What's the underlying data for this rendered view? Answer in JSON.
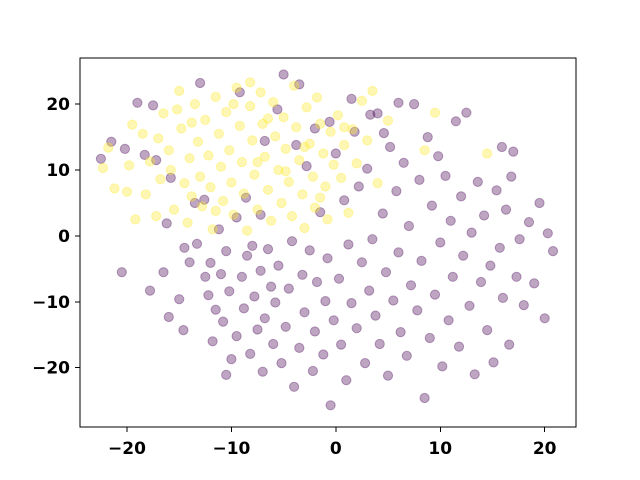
{
  "chart_data": {
    "type": "scatter",
    "title": "",
    "xlabel": "",
    "ylabel": "",
    "xlim": [
      -24.5,
      23.0
    ],
    "ylim": [
      -29.0,
      27.0
    ],
    "x_ticks": [
      -20,
      -10,
      0,
      10,
      20
    ],
    "y_ticks": [
      -20,
      -10,
      0,
      10,
      20
    ],
    "x_tick_labels": [
      "−20",
      "−10",
      "0",
      "10",
      "20"
    ],
    "y_tick_labels": [
      "−20",
      "−10",
      "0",
      "10",
      "20"
    ],
    "grid": false,
    "legend": "none",
    "marker_alpha": 0.35,
    "series": [
      {
        "color": "#440154",
        "points": [
          [
            -22.5,
            11.7
          ],
          [
            -21.5,
            14.3
          ],
          [
            -20.2,
            13.2
          ],
          [
            -20.5,
            -5.5
          ],
          [
            -19.0,
            20.2
          ],
          [
            -18.3,
            12.3
          ],
          [
            -17.5,
            19.8
          ],
          [
            -17.2,
            11.5
          ],
          [
            -17.8,
            -8.3
          ],
          [
            -16.5,
            -5.5
          ],
          [
            -16.2,
            1.9
          ],
          [
            -16.0,
            -12.3
          ],
          [
            -15.0,
            -9.6
          ],
          [
            -14.5,
            -1.8
          ],
          [
            -14.0,
            -4.0
          ],
          [
            -14.6,
            -14.3
          ],
          [
            -13.5,
            5.0
          ],
          [
            -13.0,
            23.2
          ],
          [
            -12.5,
            -6.2
          ],
          [
            -12.0,
            -4.1
          ],
          [
            -12.2,
            -9.0
          ],
          [
            -11.8,
            -16.0
          ],
          [
            -11.5,
            -11.2
          ],
          [
            -11.0,
            -5.8
          ],
          [
            -10.5,
            -2.3
          ],
          [
            -10.8,
            -13.0
          ],
          [
            -10.2,
            -8.4
          ],
          [
            -10.5,
            -21.1
          ],
          [
            -10.0,
            -18.7
          ],
          [
            -9.5,
            -15.2
          ],
          [
            -9.2,
            21.8
          ],
          [
            -9.0,
            -6.2
          ],
          [
            -8.8,
            -11.0
          ],
          [
            -8.5,
            -3.0
          ],
          [
            -8.2,
            -17.9
          ],
          [
            -8.0,
            -1.5
          ],
          [
            -7.8,
            -9.2
          ],
          [
            -7.5,
            -14.2
          ],
          [
            -7.2,
            -5.3
          ],
          [
            -7.0,
            -20.6
          ],
          [
            -6.8,
            -12.5
          ],
          [
            -6.5,
            -2.0
          ],
          [
            -6.2,
            -7.7
          ],
          [
            -6.0,
            -16.4
          ],
          [
            -5.8,
            -10.1
          ],
          [
            -5.5,
            -4.5
          ],
          [
            -5.2,
            -19.3
          ],
          [
            -5.0,
            24.5
          ],
          [
            -4.8,
            -13.8
          ],
          [
            -4.5,
            -8.0
          ],
          [
            -4.2,
            -0.8
          ],
          [
            -4.0,
            -22.9
          ],
          [
            -3.8,
            13.8
          ],
          [
            -3.5,
            -17.0
          ],
          [
            -3.2,
            -5.9
          ],
          [
            -3.0,
            -11.6
          ],
          [
            -2.8,
            10.6
          ],
          [
            -2.5,
            -2.2
          ],
          [
            -2.2,
            -20.5
          ],
          [
            -2.0,
            -14.5
          ],
          [
            -1.8,
            -7.0
          ],
          [
            -1.5,
            3.6
          ],
          [
            -1.2,
            -18.0
          ],
          [
            -1.0,
            -9.9
          ],
          [
            -0.8,
            -3.4
          ],
          [
            -0.5,
            -25.7
          ],
          [
            -0.2,
            -12.8
          ],
          [
            0.0,
            12.5
          ],
          [
            0.3,
            -6.5
          ],
          [
            0.5,
            -16.5
          ],
          [
            0.8,
            5.4
          ],
          [
            1.0,
            -21.9
          ],
          [
            1.2,
            -1.3
          ],
          [
            1.5,
            -10.2
          ],
          [
            1.8,
            15.8
          ],
          [
            2.0,
            -14.0
          ],
          [
            2.2,
            7.5
          ],
          [
            2.5,
            -4.0
          ],
          [
            2.8,
            -19.3
          ],
          [
            3.0,
            10.2
          ],
          [
            3.2,
            -8.3
          ],
          [
            3.5,
            -0.5
          ],
          [
            3.8,
            -12.1
          ],
          [
            4.0,
            18.6
          ],
          [
            4.2,
            -16.4
          ],
          [
            4.5,
            3.4
          ],
          [
            4.8,
            -5.5
          ],
          [
            5.0,
            -21.2
          ],
          [
            5.2,
            13.5
          ],
          [
            5.5,
            -9.8
          ],
          [
            5.8,
            6.8
          ],
          [
            6.0,
            -2.5
          ],
          [
            6.2,
            -14.6
          ],
          [
            6.5,
            11.1
          ],
          [
            6.8,
            -18.2
          ],
          [
            7.0,
            1.5
          ],
          [
            7.2,
            -7.5
          ],
          [
            7.5,
            20.0
          ],
          [
            7.8,
            -11.3
          ],
          [
            8.0,
            8.5
          ],
          [
            8.2,
            -3.8
          ],
          [
            8.5,
            -24.6
          ],
          [
            8.8,
            15.0
          ],
          [
            9.0,
            -15.5
          ],
          [
            9.2,
            4.6
          ],
          [
            9.5,
            -8.9
          ],
          [
            9.8,
            12.1
          ],
          [
            10.0,
            -1.0
          ],
          [
            10.2,
            -19.8
          ],
          [
            10.5,
            9.1
          ],
          [
            10.8,
            -12.8
          ],
          [
            11.0,
            2.3
          ],
          [
            11.2,
            -6.2
          ],
          [
            11.5,
            17.4
          ],
          [
            11.8,
            -16.8
          ],
          [
            12.0,
            6.0
          ],
          [
            12.2,
            -3.0
          ],
          [
            12.5,
            18.7
          ],
          [
            12.8,
            -10.6
          ],
          [
            13.0,
            0.5
          ],
          [
            13.3,
            -21.0
          ],
          [
            13.6,
            8.2
          ],
          [
            13.9,
            -7.0
          ],
          [
            14.2,
            3.1
          ],
          [
            14.5,
            -14.3
          ],
          [
            14.8,
            -4.5
          ],
          [
            15.1,
            -19.2
          ],
          [
            15.4,
            6.9
          ],
          [
            15.7,
            -1.8
          ],
          [
            16.0,
            -9.4
          ],
          [
            16.3,
            4.0
          ],
          [
            16.6,
            -16.5
          ],
          [
            17.0,
            12.8
          ],
          [
            17.3,
            -6.2
          ],
          [
            17.6,
            -0.5
          ],
          [
            18.0,
            -10.5
          ],
          [
            18.5,
            2.1
          ],
          [
            19.0,
            -7.2
          ],
          [
            19.5,
            5.0
          ],
          [
            20.0,
            -12.5
          ],
          [
            20.3,
            0.4
          ],
          [
            20.8,
            -2.3
          ],
          [
            16.8,
            9.0
          ],
          [
            15.9,
            13.5
          ],
          [
            -3.5,
            23.0
          ],
          [
            -5.6,
            19.2
          ],
          [
            -2.0,
            16.3
          ],
          [
            -6.8,
            14.4
          ],
          [
            1.5,
            20.8
          ],
          [
            -0.6,
            17.3
          ],
          [
            6.0,
            20.2
          ],
          [
            -12.6,
            5.5
          ],
          [
            -11.2,
            1.0
          ],
          [
            -9.5,
            2.8
          ],
          [
            -13.3,
            -1.2
          ],
          [
            -15.8,
            8.8
          ],
          [
            -7.2,
            3.2
          ],
          [
            -8.6,
            5.8
          ],
          [
            3.3,
            18.4
          ],
          [
            4.6,
            15.6
          ]
        ]
      },
      {
        "color": "#fde725",
        "points": [
          [
            -22.3,
            10.3
          ],
          [
            -21.2,
            7.2
          ],
          [
            -20.0,
            6.7
          ],
          [
            -19.5,
            16.9
          ],
          [
            -19.2,
            2.5
          ],
          [
            -18.5,
            15.5
          ],
          [
            -18.2,
            6.3
          ],
          [
            -17.8,
            11.3
          ],
          [
            -17.2,
            3.0
          ],
          [
            -16.8,
            8.6
          ],
          [
            -16.5,
            18.6
          ],
          [
            -16.0,
            13.0
          ],
          [
            -15.8,
            10.0
          ],
          [
            -15.2,
            19.2
          ],
          [
            -15.0,
            22.0
          ],
          [
            -14.8,
            16.3
          ],
          [
            -14.5,
            8.0
          ],
          [
            -14.2,
            2.0
          ],
          [
            -14.0,
            11.8
          ],
          [
            -13.8,
            6.0
          ],
          [
            -13.5,
            20.0
          ],
          [
            -13.2,
            14.3
          ],
          [
            -13.0,
            9.0
          ],
          [
            -12.8,
            4.5
          ],
          [
            -12.5,
            17.6
          ],
          [
            -12.2,
            12.2
          ],
          [
            -12.0,
            7.4
          ],
          [
            -11.8,
            1.0
          ],
          [
            -11.5,
            21.1
          ],
          [
            -11.2,
            15.5
          ],
          [
            -11.0,
            10.5
          ],
          [
            -10.8,
            5.3
          ],
          [
            -10.5,
            18.8
          ],
          [
            -10.2,
            13.0
          ],
          [
            -10.0,
            8.1
          ],
          [
            -9.8,
            3.2
          ],
          [
            -9.5,
            22.5
          ],
          [
            -9.2,
            16.7
          ],
          [
            -9.0,
            11.2
          ],
          [
            -8.8,
            6.4
          ],
          [
            -8.5,
            0.8
          ],
          [
            -8.2,
            19.7
          ],
          [
            -8.0,
            14.5
          ],
          [
            -7.8,
            9.3
          ],
          [
            -7.5,
            4.0
          ],
          [
            -7.2,
            21.8
          ],
          [
            -7.0,
            17.0
          ],
          [
            -6.8,
            12.0
          ],
          [
            -6.5,
            7.0
          ],
          [
            -6.2,
            2.3
          ],
          [
            -6.0,
            20.3
          ],
          [
            -5.8,
            15.1
          ],
          [
            -5.5,
            10.0
          ],
          [
            -5.2,
            5.0
          ],
          [
            -5.0,
            18.0
          ],
          [
            -4.8,
            13.2
          ],
          [
            -4.5,
            8.2
          ],
          [
            -4.2,
            3.0
          ],
          [
            -4.0,
            22.8
          ],
          [
            -3.8,
            16.5
          ],
          [
            -3.5,
            11.5
          ],
          [
            -3.2,
            6.3
          ],
          [
            -3.0,
            1.2
          ],
          [
            -2.8,
            19.5
          ],
          [
            -2.5,
            14.0
          ],
          [
            -2.2,
            9.0
          ],
          [
            -2.0,
            4.3
          ],
          [
            -1.8,
            21.0
          ],
          [
            -1.5,
            17.0
          ],
          [
            -1.2,
            12.5
          ],
          [
            -1.0,
            7.5
          ],
          [
            -0.8,
            2.5
          ],
          [
            -0.5,
            15.8
          ],
          [
            -0.2,
            10.8
          ],
          [
            0.2,
            18.3
          ],
          [
            0.5,
            8.8
          ],
          [
            0.8,
            13.8
          ],
          [
            1.2,
            3.5
          ],
          [
            1.6,
            16.2
          ],
          [
            2.0,
            11.0
          ],
          [
            2.5,
            20.5
          ],
          [
            3.0,
            14.5
          ],
          [
            3.5,
            22.0
          ],
          [
            4.0,
            8.0
          ],
          [
            5.0,
            17.5
          ],
          [
            8.5,
            13.0
          ],
          [
            9.5,
            18.7
          ],
          [
            14.5,
            12.5
          ],
          [
            -21.8,
            13.4
          ],
          [
            -19.8,
            10.7
          ],
          [
            -17.0,
            14.8
          ],
          [
            -15.5,
            4.0
          ],
          [
            -13.8,
            17.2
          ],
          [
            -11.5,
            3.8
          ],
          [
            -9.8,
            20.0
          ],
          [
            -7.5,
            11.2
          ],
          [
            -6.5,
            17.8
          ],
          [
            -4.8,
            9.8
          ],
          [
            -3.0,
            13.5
          ],
          [
            -1.5,
            5.8
          ],
          [
            0.8,
            16.5
          ],
          [
            -8.2,
            23.3
          ]
        ]
      }
    ]
  }
}
